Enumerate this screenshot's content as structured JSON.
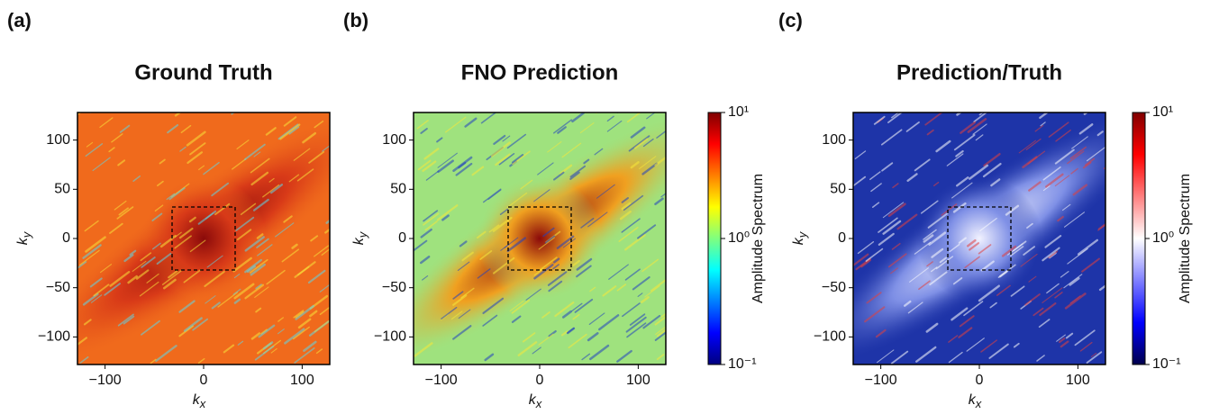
{
  "chart_data": [
    {
      "type": "heatmap",
      "panel_label": "(a)",
      "title": "Ground Truth",
      "xlabel": "k",
      "xlabel_subscript": "x",
      "ylabel": "k",
      "ylabel_subscript": "y",
      "xlim": [
        -128,
        128
      ],
      "ylim": [
        -128,
        128
      ],
      "xticks": [
        {
          "value": -100,
          "label": "−100"
        },
        0,
        100
      ],
      "yticks": [
        {
          "value": -100,
          "label": "−100"
        },
        {
          "value": -50,
          "label": "−50"
        },
        0,
        50,
        100
      ],
      "colormap": "jet"
    },
    {
      "type": "heatmap",
      "panel_label": "(b)",
      "title": "FNO Prediction",
      "xlabel": "k",
      "xlabel_subscript": "x",
      "ylabel": "k",
      "ylabel_subscript": "y",
      "xlim": [
        -128,
        128
      ],
      "ylim": [
        -128,
        128
      ],
      "xticks": [
        {
          "value": -100,
          "label": "−100"
        },
        0,
        100
      ],
      "yticks": [
        {
          "value": -100,
          "label": "−100"
        },
        {
          "value": -50,
          "label": "−50"
        },
        0,
        50,
        100
      ],
      "colormap": "jet",
      "colorbar": {
        "label": "Amplitude Spectrum",
        "scale": "log",
        "lim": [
          0.1,
          10
        ],
        "ticks": [
          {
            "value": 10,
            "label": "10¹"
          },
          {
            "value": 1,
            "label": "10⁰"
          },
          {
            "value": 0.1,
            "label": "10⁻¹"
          }
        ]
      }
    },
    {
      "type": "heatmap",
      "panel_label": "(c)",
      "title": "Prediction/Truth",
      "xlabel": "k",
      "xlabel_subscript": "x",
      "ylabel": "k",
      "ylabel_subscript": "y",
      "xlim": [
        -128,
        128
      ],
      "ylim": [
        -128,
        128
      ],
      "xticks": [
        {
          "value": -100,
          "label": "−100"
        },
        0,
        100
      ],
      "yticks": [
        {
          "value": -100,
          "label": "−100"
        },
        {
          "value": -50,
          "label": "−50"
        },
        0,
        50,
        100
      ],
      "colormap": "seismic",
      "colorbar": {
        "label": "Amplitude Spectrum",
        "scale": "log",
        "lim": [
          0.1,
          10
        ],
        "ticks": [
          {
            "value": 10,
            "label": "10¹"
          },
          {
            "value": 1,
            "label": "10⁰"
          },
          {
            "value": 0.1,
            "label": "10⁻¹"
          }
        ]
      }
    }
  ]
}
